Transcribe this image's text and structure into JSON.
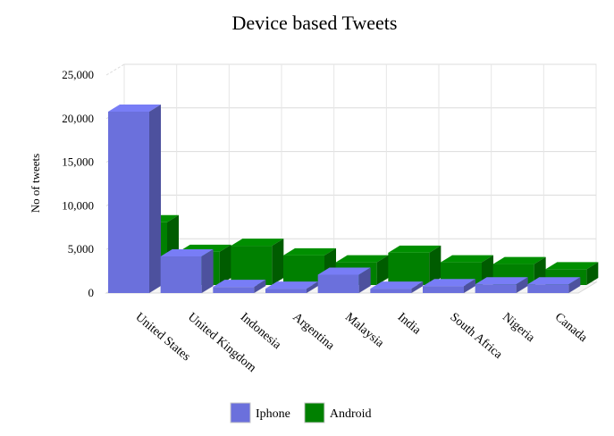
{
  "chart_data": {
    "type": "bar",
    "title": "Device based Tweets",
    "xlabel": "",
    "ylabel": "No of tweets",
    "ylim": [
      0,
      25000
    ],
    "yticks": [
      "0",
      "5,000",
      "10,000",
      "15,000",
      "20,000",
      "25,000"
    ],
    "categories": [
      "United States",
      "United Kingdom",
      "Indonesia",
      "Argentina",
      "Malaysia",
      "India",
      "South Africa",
      "Nigeria",
      "Canada"
    ],
    "series": [
      {
        "name": "Iphone",
        "color": "#6b70dc",
        "values": [
          20800,
          4200,
          700,
          500,
          2100,
          500,
          800,
          1000,
          1000
        ]
      },
      {
        "name": "Android",
        "color": "#008000",
        "values": [
          7200,
          3800,
          4500,
          3400,
          2600,
          3700,
          2600,
          2400,
          1800
        ]
      }
    ],
    "grid": true,
    "legend": "bottom",
    "style": "3d-grouped"
  }
}
